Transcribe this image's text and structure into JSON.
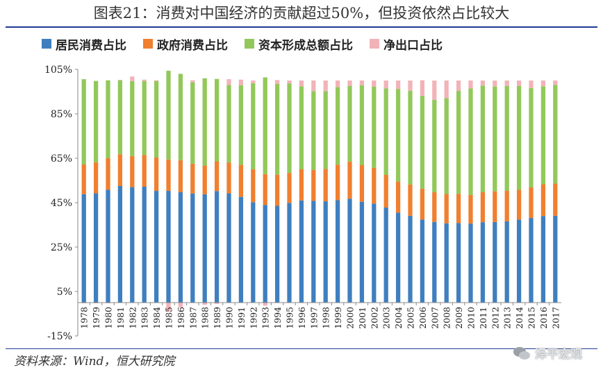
{
  "title": "图表21：消费对中国经济的贡献超过50%，但投资依然占比较大",
  "source": "资料来源：Wind，恒大研究院",
  "watermark": "泽平宏观",
  "colors": {
    "household": "#3f7fbf",
    "government": "#f07f2f",
    "investment": "#92c85a",
    "netexport": "#f2b3b8"
  },
  "chart_data": {
    "type": "bar",
    "stacked": true,
    "categories": [
      "1978",
      "1979",
      "1980",
      "1981",
      "1982",
      "1983",
      "1984",
      "1985",
      "1986",
      "1987",
      "1988",
      "1989",
      "1990",
      "1991",
      "1992",
      "1993",
      "1994",
      "1995",
      "1996",
      "1997",
      "1998",
      "1999",
      "2000",
      "2001",
      "2002",
      "2003",
      "2004",
      "2005",
      "2006",
      "2007",
      "2008",
      "2009",
      "2010",
      "2011",
      "2012",
      "2013",
      "2014",
      "2015",
      "2016",
      "2017"
    ],
    "ylim": [
      -15,
      105
    ],
    "yticks": [
      "105%",
      "85%",
      "65%",
      "45%",
      "25%",
      "5%",
      "-15%"
    ],
    "ytick_values": [
      105,
      85,
      65,
      45,
      25,
      5,
      -15
    ],
    "legend": [
      "居民消费占比",
      "政府消费占比",
      "资本形成总额占比",
      "净出口占比"
    ],
    "series": [
      {
        "name": "居民消费占比",
        "values": [
          48.8,
          49.2,
          50.8,
          52.5,
          52.0,
          52.2,
          50.3,
          50.3,
          49.8,
          49.1,
          48.8,
          50.2,
          49.2,
          47.6,
          45.2,
          44.0,
          43.6,
          44.9,
          46.0,
          45.8,
          45.6,
          46.1,
          46.8,
          45.4,
          44.6,
          42.8,
          40.5,
          39.1,
          37.4,
          36.3,
          35.7,
          35.8,
          35.6,
          36.2,
          36.3,
          36.6,
          37.4,
          38.1,
          39.0,
          39.1
        ]
      },
      {
        "name": "政府消费占比",
        "values": [
          13.4,
          14.0,
          14.3,
          14.3,
          14.0,
          14.3,
          15.0,
          14.1,
          14.3,
          13.4,
          12.9,
          13.4,
          13.9,
          14.4,
          14.8,
          13.9,
          14.0,
          13.5,
          14.0,
          13.9,
          14.6,
          16.0,
          16.7,
          16.6,
          16.1,
          14.7,
          14.0,
          14.1,
          13.9,
          13.4,
          13.2,
          13.2,
          12.9,
          13.5,
          13.8,
          13.7,
          13.4,
          13.8,
          14.3,
          14.5
        ]
      },
      {
        "name": "资本形成总额占比",
        "values": [
          38.4,
          36.6,
          35.0,
          33.2,
          33.7,
          33.3,
          34.5,
          40.0,
          38.9,
          36.7,
          39.3,
          37.1,
          34.9,
          35.9,
          38.8,
          43.5,
          40.9,
          40.3,
          37.4,
          35.5,
          35.0,
          34.9,
          34.1,
          35.8,
          36.5,
          39.0,
          41.7,
          42.2,
          41.8,
          41.6,
          43.2,
          46.3,
          47.9,
          48.0,
          47.2,
          47.3,
          46.8,
          44.7,
          44.1,
          44.4
        ]
      },
      {
        "name": "净出口占比",
        "values": [
          -0.3,
          -0.3,
          -0.3,
          0.3,
          2.1,
          0.6,
          0.3,
          -4.0,
          -2.1,
          0.9,
          -1.0,
          -0.6,
          2.6,
          2.5,
          1.2,
          -1.4,
          1.7,
          1.3,
          2.6,
          4.8,
          4.8,
          3.0,
          2.4,
          2.2,
          2.8,
          3.5,
          3.8,
          4.6,
          7.0,
          8.7,
          7.9,
          4.7,
          3.6,
          2.3,
          2.7,
          2.4,
          2.4,
          3.4,
          2.6,
          2.0
        ]
      }
    ]
  }
}
